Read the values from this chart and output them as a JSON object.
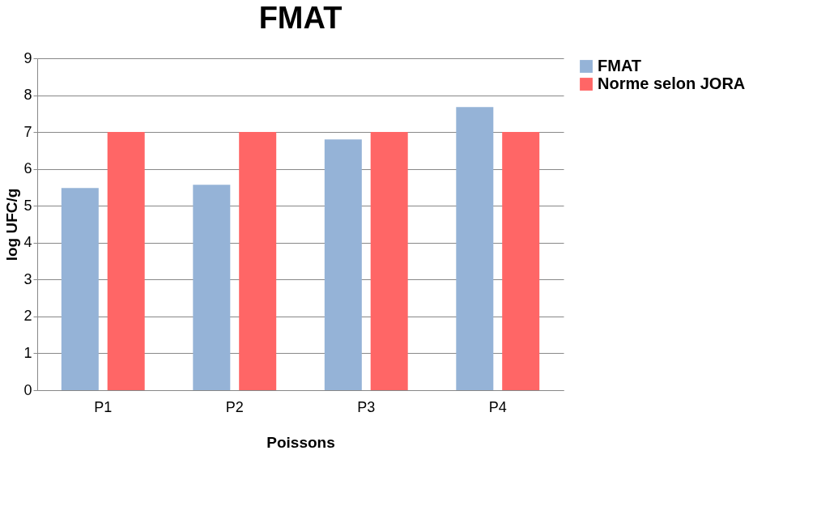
{
  "chart_data": {
    "type": "bar",
    "title": "FMAT",
    "xlabel": "Poissons",
    "ylabel": "log UFC/g",
    "categories": [
      "P1",
      "P2",
      "P3",
      "P4"
    ],
    "series": [
      {
        "name": "FMAT",
        "color": "#95b3d7",
        "values": [
          5.48,
          5.57,
          6.8,
          7.68
        ]
      },
      {
        "name": "Norme selon JORA",
        "color": "#ff6666",
        "values": [
          7,
          7,
          7,
          7
        ]
      }
    ],
    "ylim": [
      0,
      9
    ],
    "yticks": [
      0,
      1,
      2,
      3,
      4,
      5,
      6,
      7,
      8,
      9
    ],
    "grid": "y",
    "legend": "right"
  }
}
